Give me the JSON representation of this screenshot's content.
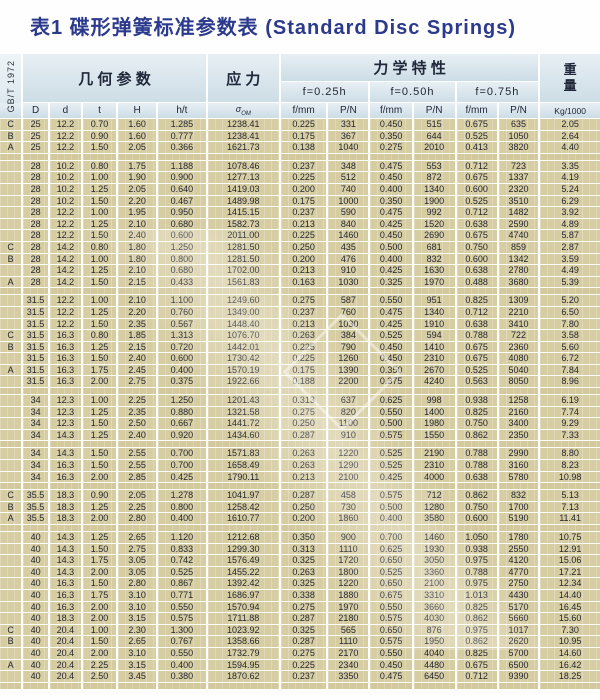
{
  "title": "表1 碟形弹簧标准参数表 (Standard Disc Springs)",
  "standard_label": "GB/T 1972",
  "header": {
    "geometry": "几 何 参 数",
    "stress": "应 力",
    "mechanical": "力 学 特 性",
    "weight_line1": "重",
    "weight_line2": "量",
    "deflections": [
      "f=0.25h",
      "f=0.50h",
      "f=0.75h"
    ],
    "col_D": "D",
    "col_d": "d",
    "col_t": "t",
    "col_H": "H",
    "col_ht": "h/t",
    "sigma_main": "σ",
    "sigma_sub": "OM",
    "f_label": "f/mm",
    "p_label": "P/N",
    "weight_unit": "Kg/1000"
  },
  "rows": [
    {
      "g": "C",
      "c": [
        "25",
        "12.2",
        "0.70",
        "1.60",
        "1.285",
        "1238.41",
        "0.225",
        "331",
        "0.450",
        "515",
        "0.675",
        "635",
        "2.05"
      ]
    },
    {
      "g": "B",
      "c": [
        "25",
        "12.2",
        "0.90",
        "1.60",
        "0.777",
        "1238.41",
        "0.175",
        "367",
        "0.350",
        "644",
        "0.525",
        "1050",
        "2.64"
      ]
    },
    {
      "g": "A",
      "c": [
        "25",
        "12.2",
        "1.50",
        "2.05",
        "0.366",
        "1621.73",
        "0.138",
        "1040",
        "0.275",
        "2010",
        "0.413",
        "3820",
        "4.40"
      ]
    },
    {
      "spacer": true
    },
    {
      "g": "",
      "c": [
        "28",
        "10.2",
        "0.80",
        "1.75",
        "1.188",
        "1078.46",
        "0.237",
        "348",
        "0.475",
        "553",
        "0.712",
        "723",
        "3.35"
      ]
    },
    {
      "g": "",
      "c": [
        "28",
        "10.2",
        "1.00",
        "1.90",
        "0.900",
        "1277.13",
        "0.225",
        "512",
        "0.450",
        "872",
        "0.675",
        "1337",
        "4.19"
      ]
    },
    {
      "g": "",
      "c": [
        "28",
        "10.2",
        "1.25",
        "2.05",
        "0.640",
        "1419.03",
        "0.200",
        "740",
        "0.400",
        "1340",
        "0.600",
        "2320",
        "5.24"
      ]
    },
    {
      "g": "",
      "c": [
        "28",
        "10.2",
        "1.50",
        "2.20",
        "0.467",
        "1489.98",
        "0.175",
        "1000",
        "0.350",
        "1900",
        "0.525",
        "3510",
        "6.29"
      ]
    },
    {
      "g": "",
      "c": [
        "28",
        "12.2",
        "1.00",
        "1.95",
        "0.950",
        "1415.15",
        "0.237",
        "590",
        "0.475",
        "992",
        "0.712",
        "1482",
        "3.92"
      ]
    },
    {
      "g": "",
      "c": [
        "28",
        "12.2",
        "1.25",
        "2.10",
        "0.680",
        "1582.73",
        "0.213",
        "840",
        "0.425",
        "1520",
        "0.638",
        "2590",
        "4.89"
      ]
    },
    {
      "g": "",
      "c": [
        "28",
        "12.2",
        "1.50",
        "2.40",
        "0.600",
        "2011.00",
        "0.225",
        "1460",
        "0.450",
        "2690",
        "0.675",
        "4740",
        "5.87"
      ]
    },
    {
      "g": "C",
      "c": [
        "28",
        "14.2",
        "0.80",
        "1.80",
        "1.250",
        "1281.50",
        "0.250",
        "435",
        "0.500",
        "681",
        "0.750",
        "859",
        "2.87"
      ]
    },
    {
      "g": "B",
      "c": [
        "28",
        "14.2",
        "1.00",
        "1.80",
        "0.800",
        "1281.50",
        "0.200",
        "476",
        "0.400",
        "832",
        "0.600",
        "1342",
        "3.59"
      ]
    },
    {
      "g": "",
      "c": [
        "28",
        "14.2",
        "1.25",
        "2.10",
        "0.680",
        "1702.00",
        "0.213",
        "910",
        "0.425",
        "1630",
        "0.638",
        "2780",
        "4.49"
      ]
    },
    {
      "g": "A",
      "c": [
        "28",
        "14.2",
        "1.50",
        "2.15",
        "0.433",
        "1561.83",
        "0.163",
        "1030",
        "0.325",
        "1970",
        "0.488",
        "3680",
        "5.39"
      ]
    },
    {
      "spacer": true
    },
    {
      "g": "",
      "c": [
        "31.5",
        "12.2",
        "1.00",
        "2.10",
        "1.100",
        "1249.60",
        "0.275",
        "587",
        "0.550",
        "951",
        "0.825",
        "1309",
        "5.20"
      ]
    },
    {
      "g": "",
      "c": [
        "31.5",
        "12.2",
        "1.25",
        "2.20",
        "0.760",
        "1349.00",
        "0.237",
        "760",
        "0.475",
        "1340",
        "0.712",
        "2210",
        "6.50"
      ]
    },
    {
      "g": "",
      "c": [
        "31.5",
        "12.2",
        "1.50",
        "2.35",
        "0.567",
        "1448.40",
        "0.213",
        "1030",
        "0.425",
        "1910",
        "0.638",
        "3410",
        "7.80"
      ]
    },
    {
      "g": "C",
      "c": [
        "31.5",
        "16.3",
        "0.80",
        "1.85",
        "1.313",
        "1076.70",
        "0.263",
        "384",
        "0.525",
        "594",
        "0.788",
        "722",
        "3.58"
      ]
    },
    {
      "g": "B",
      "c": [
        "31.5",
        "16.3",
        "1.25",
        "2.15",
        "0.720",
        "1442.01",
        "0.225",
        "790",
        "0.450",
        "1410",
        "0.675",
        "2360",
        "5.60"
      ]
    },
    {
      "g": "",
      "c": [
        "31.5",
        "16.3",
        "1.50",
        "2.40",
        "0.600",
        "1730.42",
        "0.225",
        "1260",
        "0.450",
        "2310",
        "0.675",
        "4080",
        "6.72"
      ]
    },
    {
      "g": "A",
      "c": [
        "31.5",
        "16.3",
        "1.75",
        "2.45",
        "0.400",
        "1570.19",
        "0.175",
        "1390",
        "0.350",
        "2670",
        "0.525",
        "5040",
        "7.84"
      ]
    },
    {
      "g": "",
      "c": [
        "31.5",
        "16.3",
        "2.00",
        "2.75",
        "0.375",
        "1922.66",
        "0.188",
        "2200",
        "0.375",
        "4240",
        "0.563",
        "8050",
        "8.96"
      ]
    },
    {
      "spacer": true
    },
    {
      "g": "",
      "c": [
        "34",
        "12.3",
        "1.00",
        "2.25",
        "1.250",
        "1201.43",
        "0.313",
        "637",
        "0.625",
        "998",
        "0.938",
        "1258",
        "6.19"
      ]
    },
    {
      "g": "",
      "c": [
        "34",
        "12.3",
        "1.25",
        "2.35",
        "0.880",
        "1321.58",
        "0.275",
        "820",
        "0.550",
        "1400",
        "0.825",
        "2160",
        "7.74"
      ]
    },
    {
      "g": "",
      "c": [
        "34",
        "12.3",
        "1.50",
        "2.50",
        "0.667",
        "1441.72",
        "0.250",
        "1100",
        "0.500",
        "1980",
        "0.750",
        "3400",
        "9.29"
      ]
    },
    {
      "g": "",
      "c": [
        "34",
        "14.3",
        "1.25",
        "2.40",
        "0.920",
        "1434.60",
        "0.287",
        "910",
        "0.575",
        "1550",
        "0.862",
        "2350",
        "7.33"
      ]
    },
    {
      "spacer": true
    },
    {
      "g": "",
      "c": [
        "34",
        "14.3",
        "1.50",
        "2.55",
        "0.700",
        "1571.83",
        "0.263",
        "1220",
        "0.525",
        "2190",
        "0.788",
        "2990",
        "8.80"
      ]
    },
    {
      "g": "",
      "c": [
        "34",
        "16.3",
        "1.50",
        "2.55",
        "0.700",
        "1658.49",
        "0.263",
        "1290",
        "0.525",
        "2310",
        "0.788",
        "3160",
        "8.23"
      ]
    },
    {
      "g": "",
      "c": [
        "34",
        "16.3",
        "2.00",
        "2.85",
        "0.425",
        "1790.11",
        "0.213",
        "2100",
        "0.425",
        "4000",
        "0.638",
        "5780",
        "10.98"
      ]
    },
    {
      "spacer": true
    },
    {
      "g": "C",
      "c": [
        "35.5",
        "18.3",
        "0.90",
        "2.05",
        "1.278",
        "1041.97",
        "0.287",
        "458",
        "0.575",
        "712",
        "0.862",
        "832",
        "5.13"
      ]
    },
    {
      "g": "B",
      "c": [
        "35.5",
        "18.3",
        "1.25",
        "2.25",
        "0.800",
        "1258.42",
        "0.250",
        "730",
        "0.500",
        "1280",
        "0.750",
        "1700",
        "7.13"
      ]
    },
    {
      "g": "A",
      "c": [
        "35.5",
        "18.3",
        "2.00",
        "2.80",
        "0.400",
        "1610.77",
        "0.200",
        "1860",
        "0.400",
        "3580",
        "0.600",
        "5190",
        "11.41"
      ]
    },
    {
      "spacer": true
    },
    {
      "g": "",
      "c": [
        "40",
        "14.3",
        "1.25",
        "2.65",
        "1.120",
        "1212.68",
        "0.350",
        "900",
        "0.700",
        "1460",
        "1.050",
        "1780",
        "10.75"
      ]
    },
    {
      "g": "",
      "c": [
        "40",
        "14.3",
        "1.50",
        "2.75",
        "0.833",
        "1299.30",
        "0.313",
        "1110",
        "0.625",
        "1930",
        "0.938",
        "2550",
        "12.91"
      ]
    },
    {
      "g": "",
      "c": [
        "40",
        "14.3",
        "1.75",
        "3.05",
        "0.742",
        "1576.49",
        "0.325",
        "1720",
        "0.650",
        "3050",
        "0.975",
        "4120",
        "15.06"
      ]
    },
    {
      "g": "",
      "c": [
        "40",
        "14.3",
        "2.00",
        "3.05",
        "0.525",
        "1455.22",
        "0.263",
        "1800",
        "0.525",
        "3360",
        "0.788",
        "4770",
        "17.21"
      ]
    },
    {
      "g": "",
      "c": [
        "40",
        "16.3",
        "1.50",
        "2.80",
        "0.867",
        "1392.42",
        "0.325",
        "1220",
        "0.650",
        "2100",
        "0.975",
        "2750",
        "12.34"
      ]
    },
    {
      "g": "",
      "c": [
        "40",
        "16.3",
        "1.75",
        "3.10",
        "0.771",
        "1686.97",
        "0.338",
        "1880",
        "0.675",
        "3310",
        "1.013",
        "4430",
        "14.40"
      ]
    },
    {
      "g": "",
      "c": [
        "40",
        "16.3",
        "2.00",
        "3.10",
        "0.550",
        "1570.94",
        "0.275",
        "1970",
        "0.550",
        "3660",
        "0.825",
        "5170",
        "16.45"
      ]
    },
    {
      "g": "",
      "c": [
        "40",
        "18.3",
        "2.00",
        "3.15",
        "0.575",
        "1711.88",
        "0.287",
        "2180",
        "0.575",
        "4030",
        "0.862",
        "5660",
        "15.60"
      ]
    },
    {
      "g": "C",
      "c": [
        "40",
        "20.4",
        "1.00",
        "2.30",
        "1.300",
        "1023.92",
        "0.325",
        "565",
        "0.650",
        "876",
        "0.975",
        "1017",
        "7.30"
      ]
    },
    {
      "g": "B",
      "c": [
        "40",
        "20.4",
        "1.50",
        "2.65",
        "0.767",
        "1358.66",
        "0.287",
        "1110",
        "0.575",
        "1950",
        "0.862",
        "2620",
        "10.95"
      ]
    },
    {
      "g": "",
      "c": [
        "40",
        "20.4",
        "2.00",
        "3.10",
        "0.550",
        "1732.79",
        "0.275",
        "2170",
        "0.550",
        "4040",
        "0.825",
        "5700",
        "14.60"
      ]
    },
    {
      "g": "A",
      "c": [
        "40",
        "20.4",
        "2.25",
        "3.15",
        "0.400",
        "1594.95",
        "0.225",
        "2340",
        "0.450",
        "4480",
        "0.675",
        "6500",
        "16.42"
      ]
    },
    {
      "g": "",
      "c": [
        "40",
        "20.4",
        "2.50",
        "3.45",
        "0.380",
        "1870.62",
        "0.237",
        "3350",
        "0.475",
        "6450",
        "0.712",
        "9390",
        "18.25"
      ]
    },
    {
      "spacer": true
    }
  ]
}
